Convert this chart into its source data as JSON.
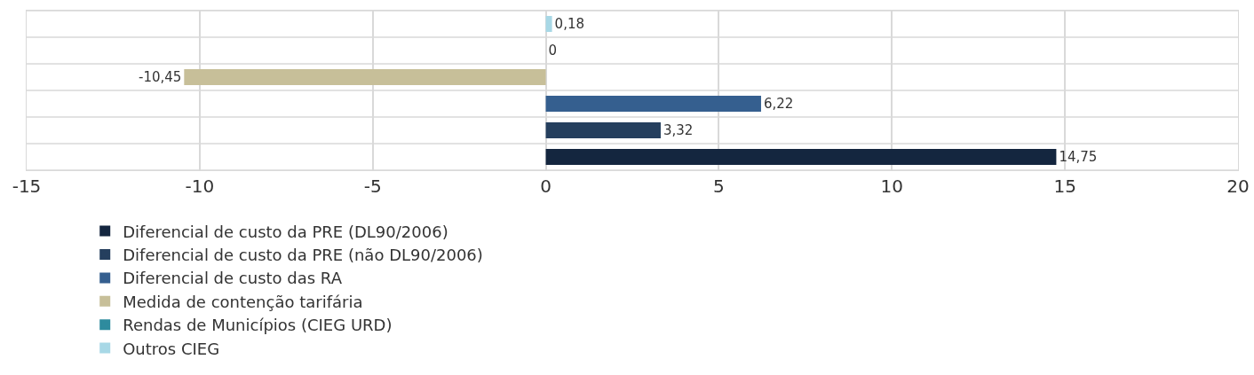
{
  "chart_data": {
    "type": "bar",
    "orientation": "horizontal",
    "categories": [
      null,
      null,
      null,
      null,
      null,
      null
    ],
    "series": [
      {
        "name": "Diferencial de custo da PRE (DL90/2006)",
        "color": "#14263f",
        "values": [
          null,
          null,
          null,
          null,
          null,
          14.75
        ],
        "value_labels": [
          null,
          null,
          null,
          null,
          null,
          "14,75"
        ]
      },
      {
        "name": "Diferencial de custo da PRE (não DL90/2006)",
        "color": "#253f5e",
        "values": [
          null,
          null,
          null,
          null,
          3.32,
          null
        ],
        "value_labels": [
          null,
          null,
          null,
          null,
          "3,32",
          null
        ]
      },
      {
        "name": "Diferencial de custo das RA",
        "color": "#355f8f",
        "values": [
          null,
          null,
          null,
          6.22,
          null,
          null
        ],
        "value_labels": [
          null,
          null,
          null,
          "6,22",
          null,
          null
        ]
      },
      {
        "name": "Medida de contenção tarifária",
        "color": "#c7bf99",
        "values": [
          null,
          null,
          -10.45,
          null,
          null,
          null
        ],
        "value_labels": [
          null,
          null,
          "-10,45",
          null,
          null,
          null
        ]
      },
      {
        "name": "Rendas de Municípios (CIEG URD)",
        "color": "#2e8b9e",
        "values": [
          null,
          0,
          null,
          null,
          null,
          null
        ],
        "value_labels": [
          null,
          "0",
          null,
          null,
          null,
          null
        ]
      },
      {
        "name": "Outros CIEG",
        "color": "#a8d8e6",
        "values": [
          0.18,
          null,
          null,
          null,
          null,
          null
        ],
        "value_labels": [
          "0,18",
          null,
          null,
          null,
          null,
          null
        ]
      }
    ],
    "xlim": [
      -15,
      20
    ],
    "xticks": [
      -15,
      -10,
      -5,
      0,
      5,
      10,
      15,
      20
    ],
    "grid": true,
    "legend": "bottom",
    "tick_labels": "x"
  }
}
